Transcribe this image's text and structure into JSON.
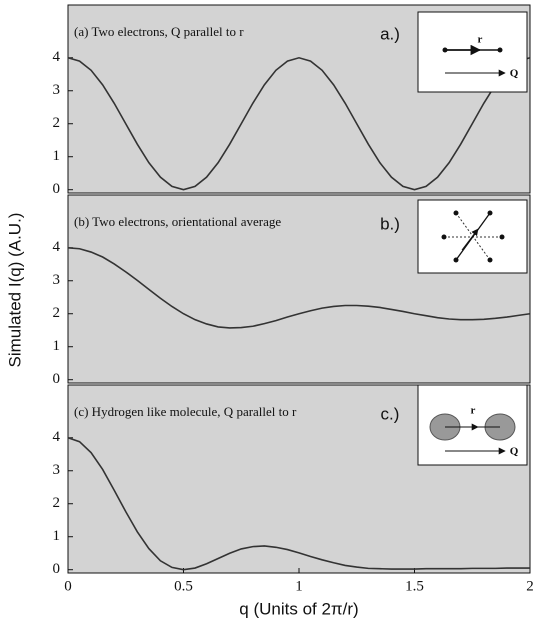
{
  "figure": {
    "xlabel": "q (Units of 2π/r)",
    "ylabel": "Simulated I(q) (A.U.)"
  },
  "chart_data": [
    {
      "type": "line",
      "title": "(a) Two electrons,  Q parallel to  r",
      "panel_label": "a.)",
      "inset_labels": [
        "r",
        "Q"
      ],
      "x": [
        0,
        0.05,
        0.1,
        0.15,
        0.2,
        0.25,
        0.3,
        0.35,
        0.4,
        0.45,
        0.5,
        0.55,
        0.6,
        0.65,
        0.7,
        0.75,
        0.8,
        0.85,
        0.9,
        0.95,
        1,
        1.05,
        1.1,
        1.15,
        1.2,
        1.25,
        1.3,
        1.35,
        1.4,
        1.45,
        1.5,
        1.55,
        1.6,
        1.65,
        1.7,
        1.75,
        1.8,
        1.85,
        1.9,
        1.95,
        2
      ],
      "values": [
        4,
        3.9,
        3.62,
        3.18,
        2.62,
        2,
        1.38,
        0.82,
        0.38,
        0.1,
        0,
        0.1,
        0.38,
        0.82,
        1.38,
        2,
        2.62,
        3.18,
        3.62,
        3.9,
        4,
        3.9,
        3.62,
        3.18,
        2.62,
        2,
        1.38,
        0.82,
        0.38,
        0.1,
        0,
        0.1,
        0.38,
        0.82,
        1.38,
        2,
        2.62,
        3.18,
        3.62,
        3.9,
        4
      ],
      "color": "#333333",
      "xlim": [
        0,
        2
      ],
      "ylim": [
        -0.1,
        5.6
      ],
      "yticks": [
        0,
        1,
        2,
        3,
        4
      ]
    },
    {
      "type": "line",
      "title": "(b) Two electrons, orientational average",
      "panel_label": "b.)",
      "x": [
        0,
        0.05,
        0.1,
        0.15,
        0.2,
        0.25,
        0.3,
        0.35,
        0.4,
        0.45,
        0.5,
        0.55,
        0.6,
        0.65,
        0.7,
        0.75,
        0.8,
        0.85,
        0.9,
        0.95,
        1,
        1.05,
        1.1,
        1.15,
        1.2,
        1.25,
        1.3,
        1.35,
        1.4,
        1.45,
        1.5,
        1.55,
        1.6,
        1.65,
        1.7,
        1.75,
        1.8,
        1.85,
        1.9,
        1.95,
        2
      ],
      "values": [
        4,
        3.97,
        3.87,
        3.72,
        3.51,
        3.27,
        3.01,
        2.74,
        2.47,
        2.22,
        2,
        1.82,
        1.69,
        1.6,
        1.57,
        1.58,
        1.62,
        1.7,
        1.79,
        1.9,
        2,
        2.09,
        2.17,
        2.22,
        2.25,
        2.25,
        2.23,
        2.19,
        2.13,
        2.07,
        2,
        1.94,
        1.88,
        1.84,
        1.82,
        1.82,
        1.83,
        1.86,
        1.9,
        1.95,
        2
      ],
      "color": "#333333",
      "xlim": [
        0,
        2
      ],
      "ylim": [
        -0.1,
        5.6
      ],
      "yticks": [
        0,
        1,
        2,
        3,
        4
      ]
    },
    {
      "type": "line",
      "title": "(c) Hydrogen like molecule,  Q parallel to  r",
      "panel_label": "c.)",
      "inset_labels": [
        "r",
        "Q"
      ],
      "x": [
        0,
        0.05,
        0.1,
        0.15,
        0.2,
        0.25,
        0.3,
        0.35,
        0.4,
        0.45,
        0.5,
        0.55,
        0.6,
        0.65,
        0.7,
        0.75,
        0.8,
        0.85,
        0.9,
        0.95,
        1,
        1.05,
        1.1,
        1.15,
        1.2,
        1.25,
        1.3,
        1.35,
        1.4,
        1.45,
        1.5,
        1.55,
        1.6,
        1.65,
        1.7,
        1.75,
        1.8,
        1.85,
        1.9,
        1.95,
        2
      ],
      "values": [
        4,
        3.88,
        3.55,
        3.04,
        2.41,
        1.76,
        1.15,
        0.64,
        0.27,
        0.07,
        0,
        0.05,
        0.18,
        0.34,
        0.5,
        0.63,
        0.7,
        0.72,
        0.68,
        0.61,
        0.51,
        0.4,
        0.3,
        0.21,
        0.13,
        0.08,
        0.04,
        0.03,
        0.02,
        0.02,
        0.02,
        0.03,
        0.03,
        0.03,
        0.03,
        0.04,
        0.04,
        0.04,
        0.05,
        0.05,
        0.05
      ],
      "color": "#333333",
      "xlim": [
        0,
        2
      ],
      "ylim": [
        -0.1,
        5.6
      ],
      "yticks": [
        0,
        1,
        2,
        3,
        4
      ],
      "xticks": [
        0,
        0.5,
        1,
        1.5,
        2
      ]
    }
  ]
}
